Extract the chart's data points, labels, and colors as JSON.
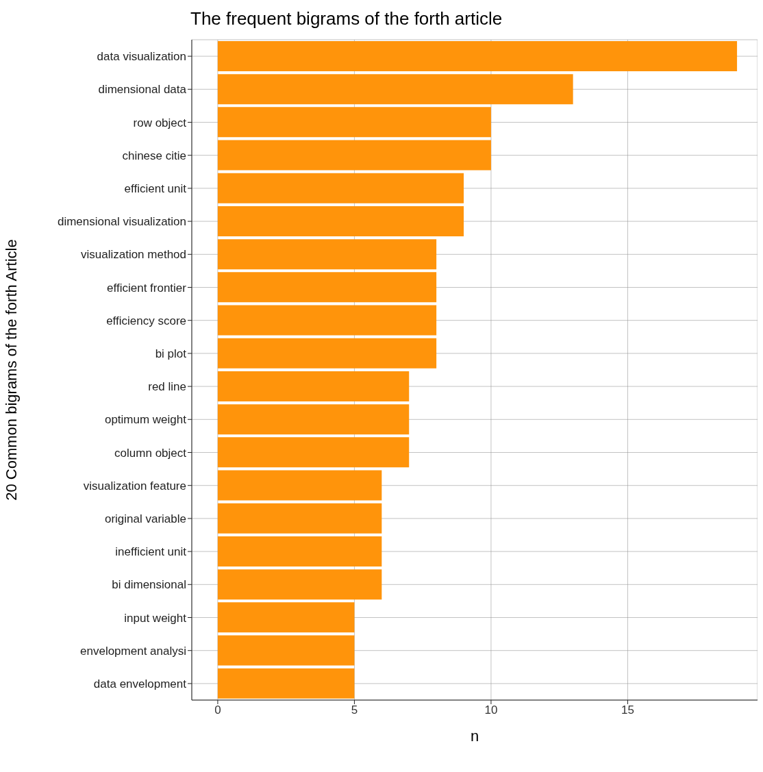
{
  "chart_data": {
    "type": "bar",
    "orientation": "horizontal",
    "title": "The frequent bigrams of the forth article",
    "xlabel": "n",
    "ylabel": "20 Common bigrams of the forth Article",
    "categories": [
      "data visualization",
      "dimensional data",
      "row object",
      "chinese citie",
      "efficient unit",
      "dimensional visualization",
      "visualization method",
      "efficient frontier",
      "efficiency score",
      "bi plot",
      "red line",
      "optimum weight",
      "column object",
      "visualization feature",
      "original variable",
      "inefficient unit",
      "bi dimensional",
      "input weight",
      "envelopment analysi",
      "data envelopment"
    ],
    "values": [
      19,
      13,
      10,
      10,
      9,
      9,
      8,
      8,
      8,
      8,
      7,
      7,
      7,
      6,
      6,
      6,
      6,
      5,
      5,
      5
    ],
    "color": "#ff940b",
    "xlim": [
      -0.95,
      19.75
    ],
    "xticks": [
      0,
      5,
      10,
      15
    ],
    "grid": true
  }
}
